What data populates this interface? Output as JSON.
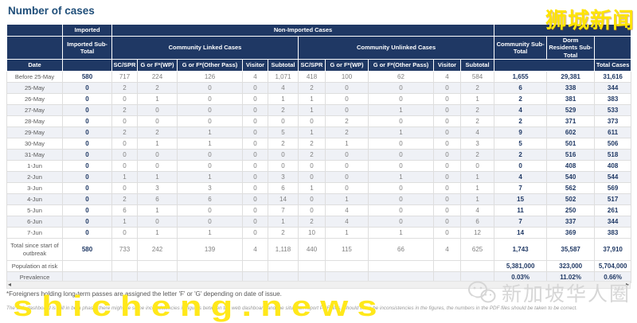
{
  "page": {
    "title": "Number of cases"
  },
  "table": {
    "header": {
      "imported_group": "Imported",
      "non_imported_group": "Non-Imported Cases",
      "imported_sub_total": "Imported Sub-Total",
      "community_linked": "Community Linked Cases",
      "community_unlinked": "Community Unlinked Cases",
      "community_sub_total": "Community Sub-Total",
      "dorm_residents_sub_total": "Dorm Residents Sub-Total",
      "date": "Date",
      "total_cases": "Total Cases",
      "sub_columns": [
        "SC/SPR",
        "G or F*(WP)",
        "G or F*(Other Pass)",
        "Visitor",
        "Subtotal",
        "SC/SPR",
        "G or F*(WP)",
        "G or F*(Other Pass)",
        "Visitor",
        "Subtotal"
      ]
    },
    "rows": [
      {
        "type": "data",
        "label": "Before 25-May",
        "values": [
          "580",
          "717",
          "224",
          "126",
          "4",
          "1,071",
          "418",
          "100",
          "62",
          "4",
          "584",
          "1,655",
          "29,381",
          "31,616"
        ]
      },
      {
        "type": "data",
        "label": "25-May",
        "values": [
          "0",
          "2",
          "2",
          "0",
          "0",
          "4",
          "2",
          "0",
          "0",
          "0",
          "2",
          "6",
          "338",
          "344"
        ]
      },
      {
        "type": "data",
        "label": "26-May",
        "values": [
          "0",
          "0",
          "1",
          "0",
          "0",
          "1",
          "1",
          "0",
          "0",
          "0",
          "1",
          "2",
          "381",
          "383"
        ]
      },
      {
        "type": "data",
        "label": "27-May",
        "values": [
          "0",
          "2",
          "0",
          "0",
          "0",
          "2",
          "1",
          "0",
          "1",
          "0",
          "2",
          "4",
          "529",
          "533"
        ]
      },
      {
        "type": "data",
        "label": "28-May",
        "values": [
          "0",
          "0",
          "0",
          "0",
          "0",
          "0",
          "0",
          "2",
          "0",
          "0",
          "2",
          "2",
          "371",
          "373"
        ]
      },
      {
        "type": "data",
        "label": "29-May",
        "values": [
          "0",
          "2",
          "2",
          "1",
          "0",
          "5",
          "1",
          "2",
          "1",
          "0",
          "4",
          "9",
          "602",
          "611"
        ]
      },
      {
        "type": "data",
        "label": "30-May",
        "values": [
          "0",
          "0",
          "1",
          "1",
          "0",
          "2",
          "2",
          "1",
          "0",
          "0",
          "3",
          "5",
          "501",
          "506"
        ]
      },
      {
        "type": "data",
        "label": "31-May",
        "values": [
          "0",
          "0",
          "0",
          "0",
          "0",
          "0",
          "2",
          "0",
          "0",
          "0",
          "2",
          "2",
          "516",
          "518"
        ]
      },
      {
        "type": "data",
        "label": "1-Jun",
        "values": [
          "0",
          "0",
          "0",
          "0",
          "0",
          "0",
          "0",
          "0",
          "0",
          "0",
          "0",
          "0",
          "408",
          "408"
        ]
      },
      {
        "type": "data",
        "label": "2-Jun",
        "values": [
          "0",
          "1",
          "1",
          "1",
          "0",
          "3",
          "0",
          "0",
          "1",
          "0",
          "1",
          "4",
          "540",
          "544"
        ]
      },
      {
        "type": "data",
        "label": "3-Jun",
        "values": [
          "0",
          "0",
          "3",
          "3",
          "0",
          "6",
          "1",
          "0",
          "0",
          "0",
          "1",
          "7",
          "562",
          "569"
        ]
      },
      {
        "type": "data",
        "label": "4-Jun",
        "values": [
          "0",
          "2",
          "6",
          "6",
          "0",
          "14",
          "0",
          "1",
          "0",
          "0",
          "1",
          "15",
          "502",
          "517"
        ]
      },
      {
        "type": "data",
        "label": "5-Jun",
        "values": [
          "0",
          "6",
          "1",
          "0",
          "0",
          "7",
          "0",
          "4",
          "0",
          "0",
          "4",
          "11",
          "250",
          "261"
        ]
      },
      {
        "type": "data",
        "label": "6-Jun",
        "values": [
          "0",
          "1",
          "0",
          "0",
          "0",
          "1",
          "2",
          "4",
          "0",
          "0",
          "6",
          "7",
          "337",
          "344"
        ]
      },
      {
        "type": "data",
        "label": "7-Jun",
        "values": [
          "0",
          "0",
          "1",
          "1",
          "0",
          "2",
          "10",
          "1",
          "1",
          "0",
          "12",
          "14",
          "369",
          "383"
        ]
      },
      {
        "type": "total",
        "label": "Total since start of outbreak",
        "values": [
          "580",
          "733",
          "242",
          "139",
          "4",
          "1,118",
          "440",
          "115",
          "66",
          "4",
          "625",
          "1,743",
          "35,587",
          "37,910"
        ]
      },
      {
        "type": "population",
        "label": "Population at risk",
        "values": [
          "",
          "",
          "",
          "",
          "",
          "",
          "",
          "",
          "",
          "",
          "",
          "5,381,000",
          "323,000",
          "5,704,000"
        ]
      },
      {
        "type": "prevalence",
        "label": "Prevalence",
        "values": [
          "",
          "",
          "",
          "",
          "",
          "",
          "",
          "",
          "",
          "",
          "",
          "0.03%",
          "11.02%",
          "0.66%"
        ]
      }
    ]
  },
  "scrollbar": {
    "left_arrow": "◂",
    "right_arrow": "▸"
  },
  "footnotes": {
    "passes": "*Foreigners holding long-term passes are assigned the letter 'F' or 'G' depending on date of issue.",
    "beta": "The web dashboard is still in beta phase, there might be some inconsistencies in figures between the web dashboard and the situation report PDF files. Should there be inconsistencies in the figures, the numbers in the PDF files should be taken to be correct."
  },
  "watermarks": {
    "top_right": "狮城新闻",
    "bottom_left": "shicheng.news",
    "bottom_right": "新加坡华人圈"
  },
  "colors": {
    "header_navy": "#1F3864",
    "title_blue": "#1F4E79",
    "watermark_yellow": "#FFE400",
    "shaded_row": "#EFF1F6"
  }
}
